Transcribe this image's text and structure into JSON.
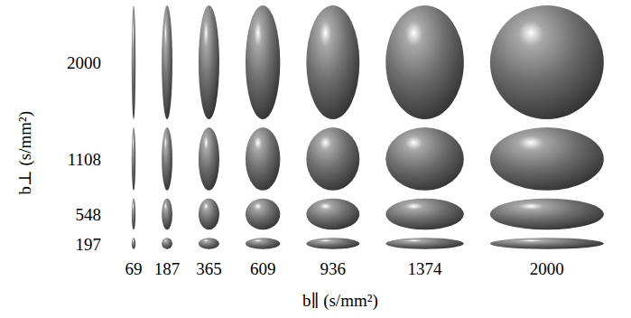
{
  "chart_data": {
    "type": "ellipsoid_grid",
    "xlabel": "b∥ (s/mm²)",
    "ylabel": "b⊥ (s/mm²)",
    "x": [
      69,
      187,
      365,
      609,
      936,
      1374,
      2000
    ],
    "y": [
      2000,
      1108,
      548,
      197
    ],
    "color": "#6e6e6e"
  }
}
